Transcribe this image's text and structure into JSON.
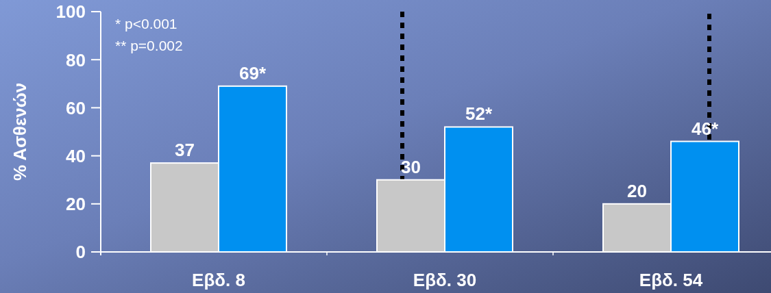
{
  "chart_data": {
    "type": "bar",
    "ylabel": "% Ασθενών",
    "categories": [
      "Εβδ. 8",
      "Εβδ. 30",
      "Εβδ. 54"
    ],
    "series": [
      {
        "color": "#c8c8c8",
        "values": [
          37,
          30,
          20
        ],
        "value_labels": [
          "37",
          "30",
          "20"
        ]
      },
      {
        "color": "#0090f0",
        "values": [
          69,
          52,
          46
        ],
        "value_labels": [
          "69*",
          "52*",
          "46*"
        ]
      }
    ],
    "ylim": [
      0,
      100
    ],
    "yticks": [
      0,
      20,
      40,
      60,
      80,
      100
    ],
    "annotations": [
      "* p<0.001",
      "** p=0.002"
    ]
  }
}
